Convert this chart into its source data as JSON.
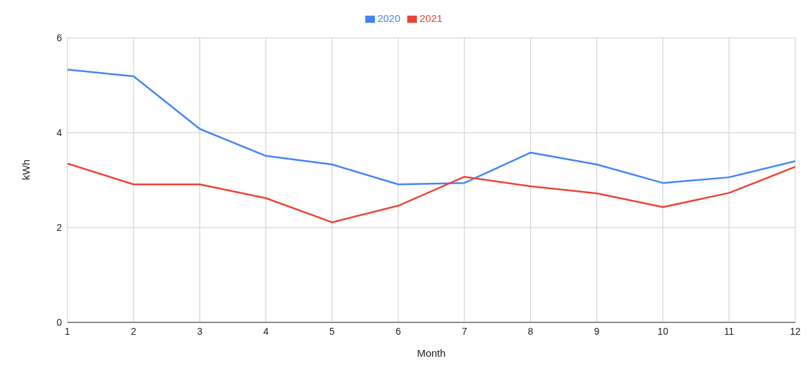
{
  "chart_data": {
    "type": "line",
    "xlabel": "Month",
    "ylabel": "kWh",
    "x": [
      1,
      2,
      3,
      4,
      5,
      6,
      7,
      8,
      9,
      10,
      11,
      12
    ],
    "series": [
      {
        "name": "2020",
        "color": "#4285f4",
        "values": [
          5.33,
          5.19,
          4.08,
          3.51,
          3.33,
          2.91,
          2.94,
          3.58,
          3.33,
          2.94,
          3.06,
          3.4
        ]
      },
      {
        "name": "2021",
        "color": "#ea4335",
        "values": [
          3.35,
          2.91,
          2.91,
          2.62,
          2.11,
          2.46,
          3.07,
          2.87,
          2.72,
          2.43,
          2.73,
          3.28
        ]
      }
    ],
    "xlim": [
      1,
      12
    ],
    "xticks": [
      1,
      2,
      3,
      4,
      5,
      6,
      7,
      8,
      9,
      10,
      11,
      12
    ],
    "ylim": [
      0,
      6
    ],
    "yticks": [
      0,
      2,
      4,
      6
    ],
    "grid": true,
    "legend": "top",
    "marker": "none",
    "line_style": "solid"
  }
}
